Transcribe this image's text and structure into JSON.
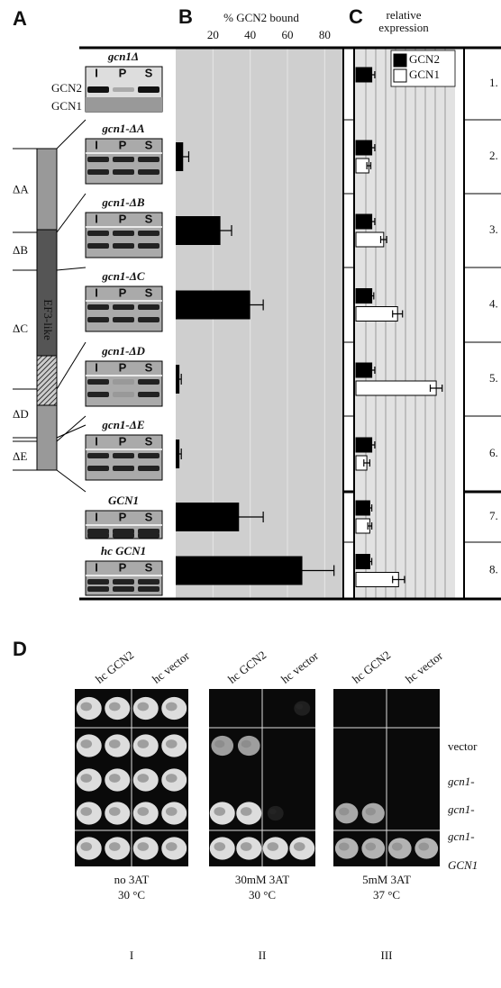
{
  "panel_labels": [
    "A",
    "B",
    "C",
    "D"
  ],
  "panel_a": {
    "lanes": [
      "I",
      "P",
      "S"
    ],
    "strains": [
      "gcn1Δ",
      "gcn1-ΔA",
      "gcn1-ΔB",
      "gcn1-ΔC",
      "gcn1-ΔD",
      "gcn1-ΔE",
      "GCN1",
      "hc GCN1"
    ],
    "blot_labels": [
      "GCN2",
      "GCN1"
    ],
    "domains": [
      "ΔA",
      "ΔB",
      "ΔC",
      "ΔD",
      "ΔE"
    ],
    "domain_name": "EF3-like"
  },
  "chart_data": [
    {
      "type": "bar",
      "orientation": "horizontal",
      "title": "% GCN2 bound",
      "values": [
        null,
        4,
        24,
        40,
        2,
        2,
        34,
        68
      ],
      "errors": [
        null,
        3,
        6,
        7,
        1,
        1,
        13,
        17
      ],
      "color": "#000000",
      "xlim": [
        0,
        90
      ],
      "xticks": [
        20,
        40,
        60,
        80
      ],
      "grid": true
    },
    {
      "type": "bar",
      "orientation": "horizontal",
      "title_lines": [
        "relative",
        "expression"
      ],
      "series": [
        {
          "name": "GCN2",
          "color": "#000000",
          "values": [
            1.6,
            1.6,
            1.6,
            1.6,
            1.6,
            1.6,
            1.4,
            1.4
          ],
          "errors": [
            0.3,
            0.3,
            0.3,
            0.2,
            0.3,
            0.3,
            0.2,
            0.2
          ]
        },
        {
          "name": "GCN1",
          "color": "#ffffff",
          "values": [
            null,
            1.3,
            2.8,
            4.2,
            8.1,
            1.1,
            1.4,
            4.3
          ],
          "errors": [
            null,
            0.2,
            0.3,
            0.5,
            0.6,
            0.3,
            0.2,
            0.6
          ]
        }
      ],
      "xlim": [
        0,
        10
      ],
      "grid": true,
      "legend": "top-right"
    }
  ],
  "row_numbers": [
    "1.",
    "2.",
    "3.",
    "4.",
    "5.",
    "6.",
    "7.",
    "8."
  ],
  "panel_d": {
    "columns": [
      "hc GCN2",
      "hc vector"
    ],
    "rows": [
      "vector",
      "gcn1-",
      "gcn1-",
      "gcn1-",
      "GCN1"
    ],
    "conditions": [
      [
        "no 3AT",
        "30 °C"
      ],
      [
        "30mM 3AT",
        "30 °C"
      ],
      [
        "5mM 3AT",
        "37 °C"
      ]
    ],
    "plates": [
      "I",
      "II",
      "III"
    ]
  }
}
